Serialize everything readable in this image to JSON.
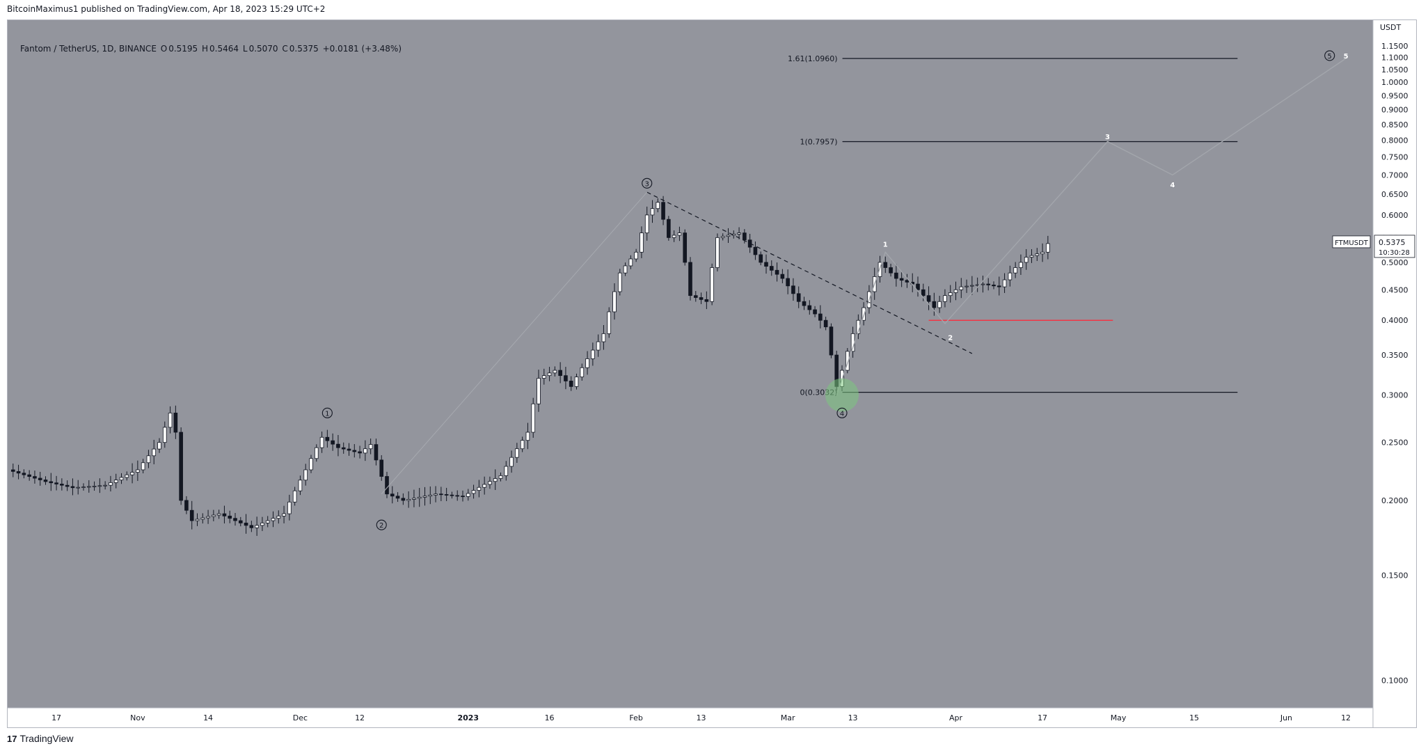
{
  "header": {
    "published_by": "BitcoinMaximus1 published on TradingView.com, Apr 18, 2023 15:29 UTC+2"
  },
  "legend": {
    "symbol": "Fantom / TetherUS, 1D, BINANCE",
    "open_label": "O",
    "open": "0.5195",
    "high_label": "H",
    "high": "0.5464",
    "low_label": "L",
    "low": "0.5070",
    "close_label": "C",
    "close": "0.5375",
    "change": "+0.0181 (+3.48%)"
  },
  "footer": {
    "brand": "TradingView",
    "logo_glyph": "17"
  },
  "colors": {
    "plot_bg": "#93959d",
    "axis_bg": "#ffffff",
    "candle_up": "#ffffff",
    "candle_down": "#131722",
    "support_line": "#f23645",
    "fib_line": "#131722",
    "highlight_circle": "#7bc67e"
  },
  "chart_data": {
    "type": "candlestick",
    "title": "Fantom / TetherUS, 1D, BINANCE",
    "ylabel": "USDT",
    "yscale": "log",
    "ylim": [
      0.09,
      1.27
    ],
    "y_ticks": [
      "1.1500",
      "1.1000",
      "1.0500",
      "1.0000",
      "0.9500",
      "0.9000",
      "0.8500",
      "0.8000",
      "0.7500",
      "0.7000",
      "0.6500",
      "0.6000",
      "0.5500",
      "0.5000",
      "0.4500",
      "0.4000",
      "0.3500",
      "0.3000",
      "0.2500",
      "0.2000",
      "0.1500",
      "0.1000"
    ],
    "x_range": [
      "2022-10-08",
      "2023-06-17"
    ],
    "x_ticks": [
      {
        "label": "17",
        "date": "2022-10-17"
      },
      {
        "label": "Nov",
        "date": "2022-11-01"
      },
      {
        "label": "14",
        "date": "2022-11-14"
      },
      {
        "label": "Dec",
        "date": "2022-12-01"
      },
      {
        "label": "12",
        "date": "2022-12-12"
      },
      {
        "label": "2023",
        "date": "2023-01-01"
      },
      {
        "label": "16",
        "date": "2023-01-16"
      },
      {
        "label": "Feb",
        "date": "2023-02-01"
      },
      {
        "label": "13",
        "date": "2023-02-13"
      },
      {
        "label": "Mar",
        "date": "2023-03-01"
      },
      {
        "label": "13",
        "date": "2023-03-13"
      },
      {
        "label": "Apr",
        "date": "2023-04-01"
      },
      {
        "label": "17",
        "date": "2023-04-17"
      },
      {
        "label": "May",
        "date": "2023-05-01"
      },
      {
        "label": "15",
        "date": "2023-05-15"
      },
      {
        "label": "Jun",
        "date": "2023-06-01"
      },
      {
        "label": "12",
        "date": "2023-06-12"
      }
    ],
    "price_path": [
      [
        "2022-10-08",
        0.225
      ],
      [
        "2022-10-15",
        0.215
      ],
      [
        "2022-10-20",
        0.21
      ],
      [
        "2022-10-26",
        0.212
      ],
      [
        "2022-11-01",
        0.225
      ],
      [
        "2022-11-05",
        0.25
      ],
      [
        "2022-11-07",
        0.28
      ],
      [
        "2022-11-08",
        0.26
      ],
      [
        "2022-11-09",
        0.2
      ],
      [
        "2022-11-11",
        0.185
      ],
      [
        "2022-11-16",
        0.19
      ],
      [
        "2022-11-22",
        0.18
      ],
      [
        "2022-11-28",
        0.19
      ],
      [
        "2022-12-02",
        0.225
      ],
      [
        "2022-12-05",
        0.255
      ],
      [
        "2022-12-08",
        0.245
      ],
      [
        "2022-12-12",
        0.24
      ],
      [
        "2022-12-14",
        0.248
      ],
      [
        "2022-12-17",
        0.205
      ],
      [
        "2022-12-20",
        0.2
      ],
      [
        "2022-12-26",
        0.205
      ],
      [
        "2022-12-31",
        0.203
      ],
      [
        "2023-01-07",
        0.22
      ],
      [
        "2023-01-12",
        0.26
      ],
      [
        "2023-01-14",
        0.32
      ],
      [
        "2023-01-17",
        0.33
      ],
      [
        "2023-01-20",
        0.31
      ],
      [
        "2023-01-23",
        0.345
      ],
      [
        "2023-01-26",
        0.38
      ],
      [
        "2023-01-29",
        0.48
      ],
      [
        "2023-02-01",
        0.52
      ],
      [
        "2023-02-03",
        0.6
      ],
      [
        "2023-02-05",
        0.63
      ],
      [
        "2023-02-07",
        0.55
      ],
      [
        "2023-02-09",
        0.56
      ],
      [
        "2023-02-11",
        0.44
      ],
      [
        "2023-02-14",
        0.43
      ],
      [
        "2023-02-16",
        0.55
      ],
      [
        "2023-02-20",
        0.56
      ],
      [
        "2023-02-24",
        0.5
      ],
      [
        "2023-02-28",
        0.47
      ],
      [
        "2023-03-03",
        0.43
      ],
      [
        "2023-03-06",
        0.41
      ],
      [
        "2023-03-08",
        0.39
      ],
      [
        "2023-03-10",
        0.31
      ],
      [
        "2023-03-11",
        0.33
      ],
      [
        "2023-03-13",
        0.38
      ],
      [
        "2023-03-15",
        0.42
      ],
      [
        "2023-03-18",
        0.5
      ],
      [
        "2023-03-21",
        0.47
      ],
      [
        "2023-03-24",
        0.46
      ],
      [
        "2023-03-28",
        0.42
      ],
      [
        "2023-03-30",
        0.44
      ],
      [
        "2023-04-02",
        0.455
      ],
      [
        "2023-04-06",
        0.46
      ],
      [
        "2023-04-09",
        0.455
      ],
      [
        "2023-04-11",
        0.48
      ],
      [
        "2023-04-14",
        0.51
      ],
      [
        "2023-04-17",
        0.52
      ],
      [
        "2023-04-18",
        0.5375
      ]
    ],
    "last_price": {
      "symbol": "FTMUSDT",
      "price": "0.5375",
      "countdown": "10:30:28"
    },
    "fib_levels": [
      {
        "label": "1.61(1.0960)",
        "value": 1.096
      },
      {
        "label": "1(0.7957)",
        "value": 0.7957
      },
      {
        "label": "0(0.3032)",
        "value": 0.3032
      }
    ],
    "fib_range": [
      "2023-03-13",
      "2023-05-23"
    ],
    "support_line": {
      "value": 0.4,
      "range": [
        "2023-03-27",
        "2023-04-30"
      ]
    },
    "descending_resistance": {
      "from": [
        "2023-02-03",
        0.655
      ],
      "to": [
        "2023-04-04",
        0.352
      ]
    },
    "wave_labels_circled": [
      {
        "label": "1",
        "date": "2022-12-06",
        "value": 0.28
      },
      {
        "label": "2",
        "date": "2022-12-16",
        "value": 0.182
      },
      {
        "label": "3",
        "date": "2023-02-03",
        "value": 0.678
      },
      {
        "label": "4",
        "date": "2023-03-11",
        "value": 0.28
      },
      {
        "label": "5",
        "date": "2023-06-09",
        "value": 1.108
      }
    ],
    "wave_labels_minor": [
      {
        "label": "1",
        "date": "2023-03-19",
        "value": 0.537
      },
      {
        "label": "2",
        "date": "2023-03-31",
        "value": 0.375
      },
      {
        "label": "3",
        "date": "2023-04-29",
        "value": 0.812
      },
      {
        "label": "4",
        "date": "2023-05-11",
        "value": 0.675
      },
      {
        "label": "5",
        "date": "2023-06-12",
        "value": 1.108
      }
    ],
    "projection_path": [
      [
        "2023-03-10",
        0.3
      ],
      [
        "2023-03-19",
        0.52
      ],
      [
        "2023-03-30",
        0.395
      ],
      [
        "2023-04-29",
        0.796
      ],
      [
        "2023-05-11",
        0.7
      ],
      [
        "2023-06-12",
        1.096
      ]
    ]
  }
}
